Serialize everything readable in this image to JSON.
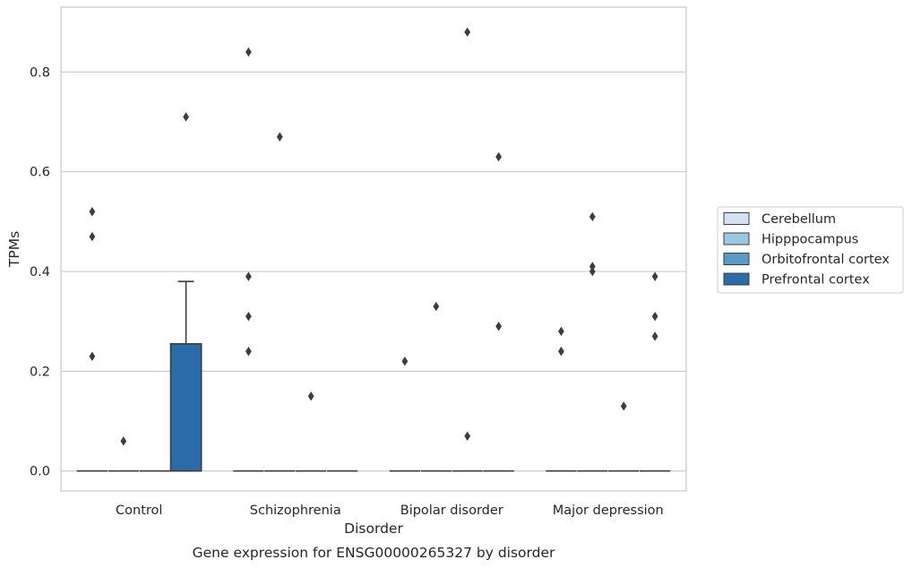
{
  "chart_data": {
    "type": "box",
    "xlabel": "Disorder",
    "ylabel": "TPMs",
    "caption": "Gene expression for ENSG00000265327 by disorder",
    "ylim": [
      -0.04,
      0.93
    ],
    "yticks": [
      "0.0",
      "0.2",
      "0.4",
      "0.6",
      "0.8"
    ],
    "ytick_values": [
      0.0,
      0.2,
      0.4,
      0.6,
      0.8
    ],
    "grid": "horizontal",
    "legend_position": "right",
    "categories": [
      "Control",
      "Schizophrenia",
      "Bipolar disorder",
      "Major depression"
    ],
    "series": [
      {
        "name": "Cerebellum",
        "color": "#d1e2f2",
        "boxes": [
          {
            "q1": 0.0,
            "median": 0.0,
            "q3": 0.0,
            "whisker_low": 0.0,
            "whisker_high": 0.0,
            "outliers": [
              0.23,
              0.47,
              0.52
            ]
          },
          {
            "q1": 0.0,
            "median": 0.0,
            "q3": 0.0,
            "whisker_low": 0.0,
            "whisker_high": 0.0,
            "outliers": [
              0.24,
              0.31,
              0.39,
              0.84
            ]
          },
          {
            "q1": 0.0,
            "median": 0.0,
            "q3": 0.0,
            "whisker_low": 0.0,
            "whisker_high": 0.0,
            "outliers": [
              0.22
            ]
          },
          {
            "q1": 0.0,
            "median": 0.0,
            "q3": 0.0,
            "whisker_low": 0.0,
            "whisker_high": 0.0,
            "outliers": [
              0.24,
              0.28
            ]
          }
        ]
      },
      {
        "name": "Hipppocampus",
        "color": "#9ac8e0",
        "boxes": [
          {
            "q1": 0.0,
            "median": 0.0,
            "q3": 0.0,
            "whisker_low": 0.0,
            "whisker_high": 0.0,
            "outliers": [
              0.06
            ]
          },
          {
            "q1": 0.0,
            "median": 0.0,
            "q3": 0.0,
            "whisker_low": 0.0,
            "whisker_high": 0.0,
            "outliers": [
              0.67
            ]
          },
          {
            "q1": 0.0,
            "median": 0.0,
            "q3": 0.0,
            "whisker_low": 0.0,
            "whisker_high": 0.0,
            "outliers": [
              0.33
            ]
          },
          {
            "q1": 0.0,
            "median": 0.0,
            "q3": 0.0,
            "whisker_low": 0.0,
            "whisker_high": 0.0,
            "outliers": [
              0.4,
              0.41,
              0.51
            ]
          }
        ]
      },
      {
        "name": "Orbitofrontal cortex",
        "color": "#5a9ac9",
        "boxes": [
          {
            "q1": 0.0,
            "median": 0.0,
            "q3": 0.0,
            "whisker_low": 0.0,
            "whisker_high": 0.0,
            "outliers": []
          },
          {
            "q1": 0.0,
            "median": 0.0,
            "q3": 0.0,
            "whisker_low": 0.0,
            "whisker_high": 0.0,
            "outliers": [
              0.15
            ]
          },
          {
            "q1": 0.0,
            "median": 0.0,
            "q3": 0.0,
            "whisker_low": 0.0,
            "whisker_high": 0.0,
            "outliers": [
              0.07,
              0.88
            ]
          },
          {
            "q1": 0.0,
            "median": 0.0,
            "q3": 0.0,
            "whisker_low": 0.0,
            "whisker_high": 0.0,
            "outliers": [
              0.13
            ]
          }
        ]
      },
      {
        "name": "Prefrontal cortex",
        "color": "#2b6ba8",
        "boxes": [
          {
            "q1": 0.0,
            "median": 0.0,
            "q3": 0.255,
            "whisker_low": 0.0,
            "whisker_high": 0.38,
            "outliers": [
              0.71
            ]
          },
          {
            "q1": 0.0,
            "median": 0.0,
            "q3": 0.0,
            "whisker_low": 0.0,
            "whisker_high": 0.0,
            "outliers": []
          },
          {
            "q1": 0.0,
            "median": 0.0,
            "q3": 0.0,
            "whisker_low": 0.0,
            "whisker_high": 0.0,
            "outliers": [
              0.29,
              0.63
            ]
          },
          {
            "q1": 0.0,
            "median": 0.0,
            "q3": 0.0,
            "whisker_low": 0.0,
            "whisker_high": 0.0,
            "outliers": [
              0.27,
              0.31,
              0.39
            ]
          }
        ]
      }
    ]
  }
}
